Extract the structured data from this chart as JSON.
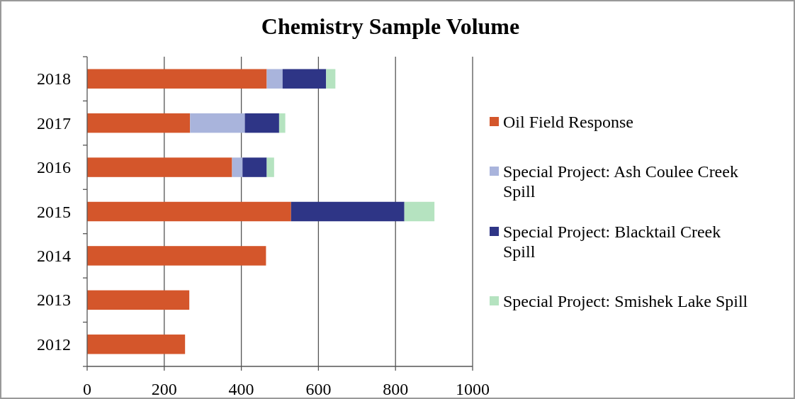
{
  "chart_data": {
    "type": "bar",
    "title": "Chemistry Sample Volume",
    "orientation": "horizontal",
    "stacked": true,
    "categories": [
      "2018",
      "2017",
      "2016",
      "2015",
      "2014",
      "2013",
      "2012"
    ],
    "series": [
      {
        "name": "Oil Field Response",
        "color": "#d4562b",
        "values": [
          466,
          267,
          376,
          529,
          464,
          265,
          254
        ]
      },
      {
        "name": "Special Project: Ash Coulee Creek Spill",
        "color": "#a9b4dc",
        "values": [
          41,
          142,
          27,
          0,
          0,
          0,
          0
        ]
      },
      {
        "name": "Special Project: Blacktail Creek Spill",
        "color": "#2e3586",
        "values": [
          113,
          89,
          63,
          294,
          0,
          0,
          0
        ]
      },
      {
        "name": "Special Project: Smishek Lake Spill",
        "color": "#b5e3c0",
        "values": [
          24,
          16,
          19,
          78,
          0,
          0,
          0
        ]
      }
    ],
    "xlim": [
      0,
      1000
    ],
    "xticks": [
      0,
      200,
      400,
      600,
      800,
      1000
    ],
    "grid": "x",
    "legend": "right"
  }
}
